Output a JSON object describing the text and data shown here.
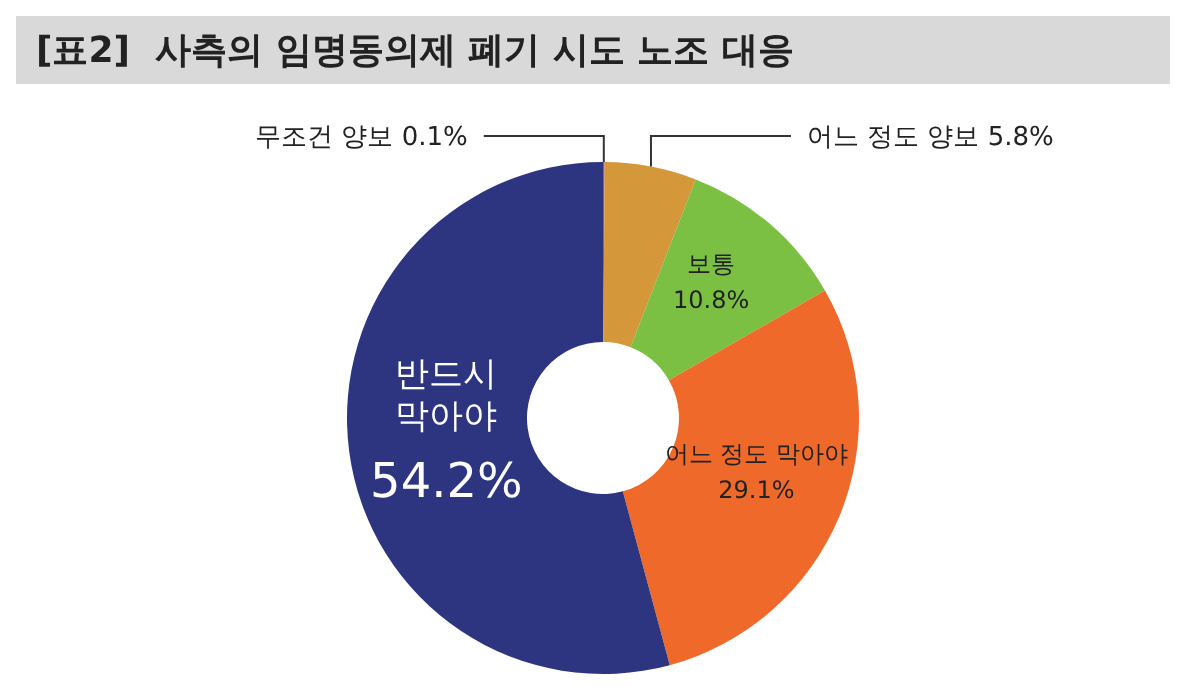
{
  "chart_data": {
    "type": "donut",
    "title": "[표2]  사측의 임명동의제 폐기 시도 노조 대응",
    "categories": [
      "무조건 양보",
      "어느 정도 양보",
      "보통",
      "어느 정도 막아야",
      "반드시 막아야"
    ],
    "values": [
      0.1,
      5.8,
      10.8,
      29.1,
      54.2
    ],
    "value_labels": [
      "0.1%",
      "5.8%",
      "10.8%",
      "29.1%",
      "54.2%"
    ],
    "colors": [
      "#c0504d",
      "#d4973a",
      "#7bc043",
      "#ef6a2a",
      "#2e3580"
    ],
    "legend": false
  }
}
